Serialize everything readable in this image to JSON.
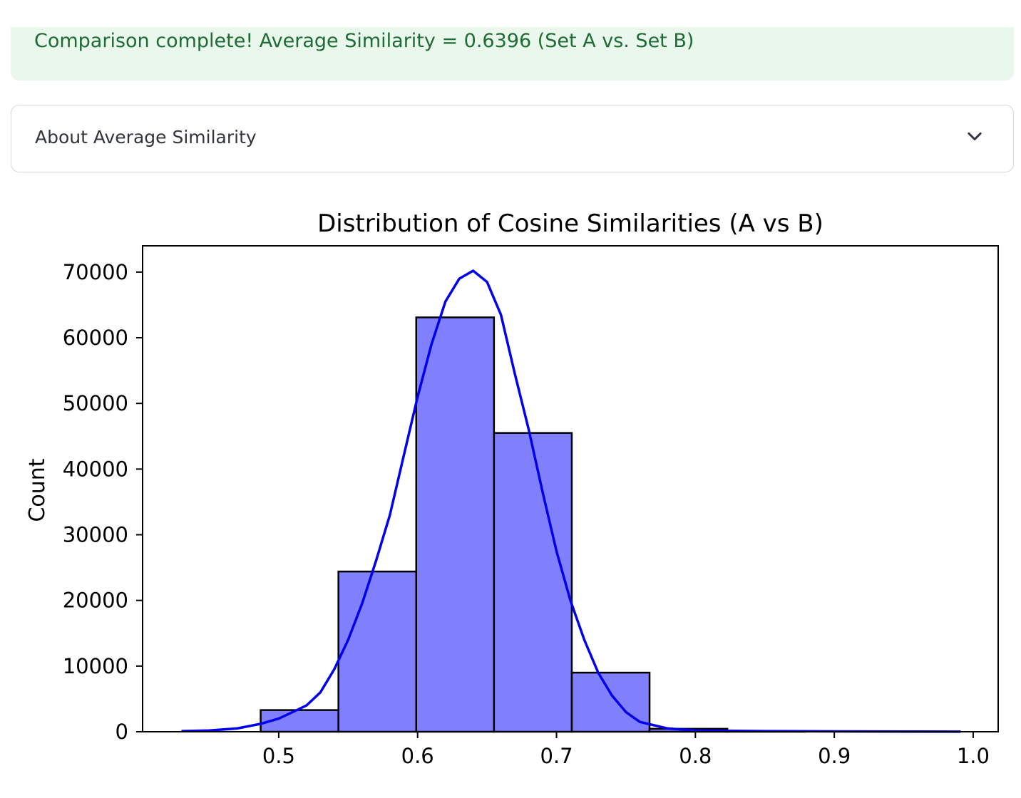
{
  "alert": {
    "text": "Comparison complete! Average Similarity = 0.6396 (Set A vs. Set B)",
    "color": "#1e6b34",
    "background": "#eaf7ed"
  },
  "expander": {
    "label": "About Average Similarity",
    "icon": "chevron-down-icon"
  },
  "chart_data": {
    "type": "bar",
    "title": "Distribution of Cosine Similarities (A vs B)",
    "xlabel": "",
    "ylabel": "Count",
    "xlim": [
      0.402,
      1.018
    ],
    "ylim": [
      0,
      74000
    ],
    "xticks": [
      "0.5",
      "0.6",
      "0.7",
      "0.8",
      "0.9",
      "1.0"
    ],
    "yticks": [
      "0",
      "10000",
      "20000",
      "30000",
      "40000",
      "50000",
      "60000",
      "70000"
    ],
    "bins": [
      {
        "x0": 0.487,
        "x1": 0.543,
        "count": 3300
      },
      {
        "x0": 0.543,
        "x1": 0.599,
        "count": 24400
      },
      {
        "x0": 0.599,
        "x1": 0.655,
        "count": 63100
      },
      {
        "x0": 0.655,
        "x1": 0.711,
        "count": 45500
      },
      {
        "x0": 0.711,
        "x1": 0.767,
        "count": 9000
      },
      {
        "x0": 0.767,
        "x1": 0.823,
        "count": 450
      },
      {
        "x0": 0.823,
        "x1": 0.879,
        "count": 10
      },
      {
        "x0": 0.879,
        "x1": 0.935,
        "count": 0
      },
      {
        "x0": 0.935,
        "x1": 0.991,
        "count": 0
      }
    ],
    "bar_color": "#8080ff",
    "kde": {
      "color": "#0000ee",
      "points": [
        [
          0.43,
          100
        ],
        [
          0.45,
          200
        ],
        [
          0.47,
          500
        ],
        [
          0.487,
          1200
        ],
        [
          0.5,
          2000
        ],
        [
          0.51,
          3000
        ],
        [
          0.52,
          4000
        ],
        [
          0.53,
          6000
        ],
        [
          0.54,
          9500
        ],
        [
          0.55,
          14000
        ],
        [
          0.56,
          19500
        ],
        [
          0.57,
          26000
        ],
        [
          0.58,
          33000
        ],
        [
          0.59,
          42000
        ],
        [
          0.6,
          51000
        ],
        [
          0.61,
          59000
        ],
        [
          0.62,
          65500
        ],
        [
          0.63,
          69000
        ],
        [
          0.64,
          70200
        ],
        [
          0.65,
          68500
        ],
        [
          0.66,
          63500
        ],
        [
          0.67,
          54500
        ],
        [
          0.68,
          46000
        ],
        [
          0.69,
          36500
        ],
        [
          0.7,
          27500
        ],
        [
          0.71,
          20000
        ],
        [
          0.72,
          14000
        ],
        [
          0.73,
          9000
        ],
        [
          0.74,
          5500
        ],
        [
          0.75,
          3000
        ],
        [
          0.76,
          1500
        ],
        [
          0.78,
          500
        ],
        [
          0.8,
          200
        ],
        [
          0.85,
          100
        ],
        [
          0.9,
          50
        ],
        [
          0.95,
          20
        ],
        [
          0.991,
          10
        ]
      ]
    }
  }
}
